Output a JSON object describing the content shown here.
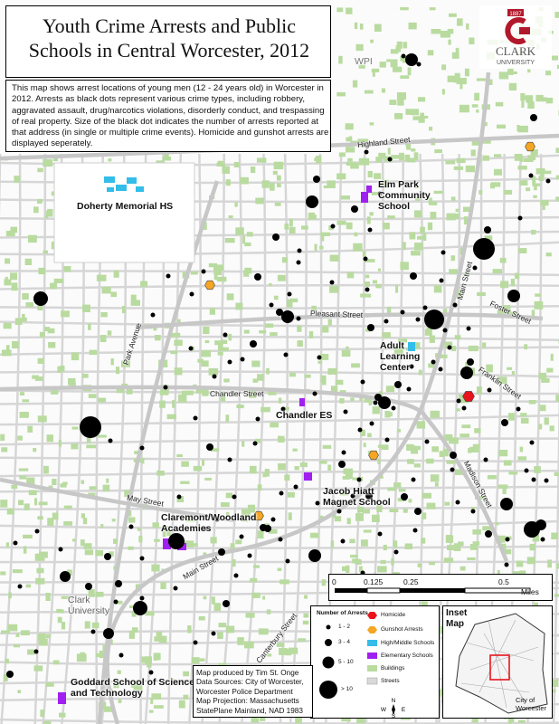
{
  "title": "Youth Crime Arrests and Public\nSchools in Central Worcester, 2012",
  "description": "This map shows arrest locations of young men (12 - 24 years old) in Worcester in 2012. Arrests as black dots represent various crime types, including robbery, aggravated assault, drug/narcotics violations, disorderly conduct, and trespassing of real property. Size of the black dot indicates the number of arrests reported at that address (in single or multiple crime events). Homicide and gunshot arrests are displayed seperately.",
  "logo": {
    "year": "1887",
    "name": "CLARK",
    "subtitle": "UNIVERSITY",
    "color": "#b2182b"
  },
  "place_labels": {
    "doherty": "Doherty Memorial HS",
    "elm_park": "Elm Park\nCommunity\nSchool",
    "adult_learning": "Adult\nLearning\nCenter",
    "chandler_es": "Chandler ES",
    "jacob_hiatt": "Jacob Hiatt\nMagnet School",
    "claremont": "Claremont/Woodland\nAcademies",
    "goddard": "Goddard School of Science\nand Technology",
    "clark_university": "Clark\nUniversity",
    "wpi": "WPI"
  },
  "streets": {
    "highland": "Highland Street",
    "pleasant": "Pleasant Street",
    "chandler": "Chandler Street",
    "park": "Park Avenue",
    "may": "May Street",
    "main_south": "Main Street",
    "main_north": "Main Street",
    "foster": "Foster Street",
    "franklin": "Franklin Street",
    "madison": "Madison Street",
    "canterbury": "Canterbury Street"
  },
  "scale": {
    "ticks": [
      "0",
      "0.125",
      "0.25",
      "0.5"
    ],
    "unit": "Miles"
  },
  "legend": {
    "arrests_title": "Number of Arrests",
    "arrest_classes": [
      "1 - 2",
      "3 - 4",
      "5 - 10",
      "> 10"
    ],
    "symbols": [
      "Homicide",
      "Gunshot Arrests",
      "High/Middle Schools",
      "Elementary Schools",
      "Buildings",
      "Streets"
    ],
    "colors": {
      "homicide": "#e8141c",
      "gunshot": "#f5a623",
      "high_middle": "#33bde8",
      "elementary": "#a020f0",
      "buildings": "#b9dba0",
      "streets": "#d9d9d9",
      "arrests": "#000000"
    }
  },
  "north_arrow": {
    "n": "N",
    "s": "S",
    "e": "E",
    "w": "W"
  },
  "inset": {
    "title": "Inset\nMap",
    "city": "City of\nWorcester"
  },
  "credits": "Map produced by Tim St. Onge\nData Sources: City of Worcester,\nWorcester Police Department\nMap Projection: Massachusetts\nStatePlane Mainland, NAD 1983"
}
